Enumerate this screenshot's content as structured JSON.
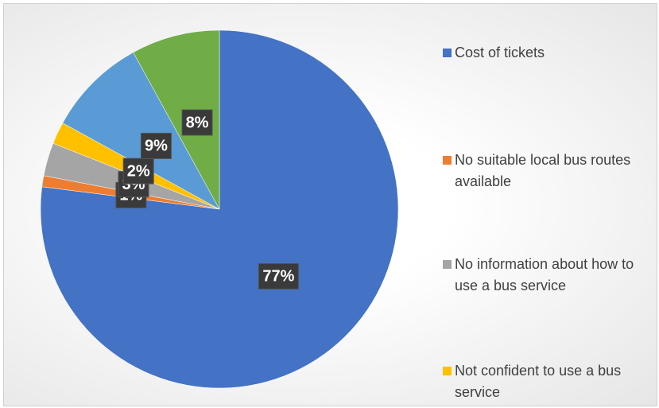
{
  "chart_data": {
    "type": "pie",
    "categories": [
      "Cost of tickets",
      "No suitable local bus routes available",
      "No information about how to use a bus service",
      "Not confident to use a bus service",
      null,
      null
    ],
    "values": [
      77,
      1,
      3,
      2,
      9,
      8
    ],
    "value_labels": [
      "77%",
      "1%",
      "3%",
      "2%",
      "9%",
      "8%"
    ],
    "colors": [
      "#4472c4",
      "#ed7d31",
      "#a5a5a5",
      "#ffc000",
      "#5b9bd5",
      "#70ad47"
    ],
    "legend": "right"
  }
}
